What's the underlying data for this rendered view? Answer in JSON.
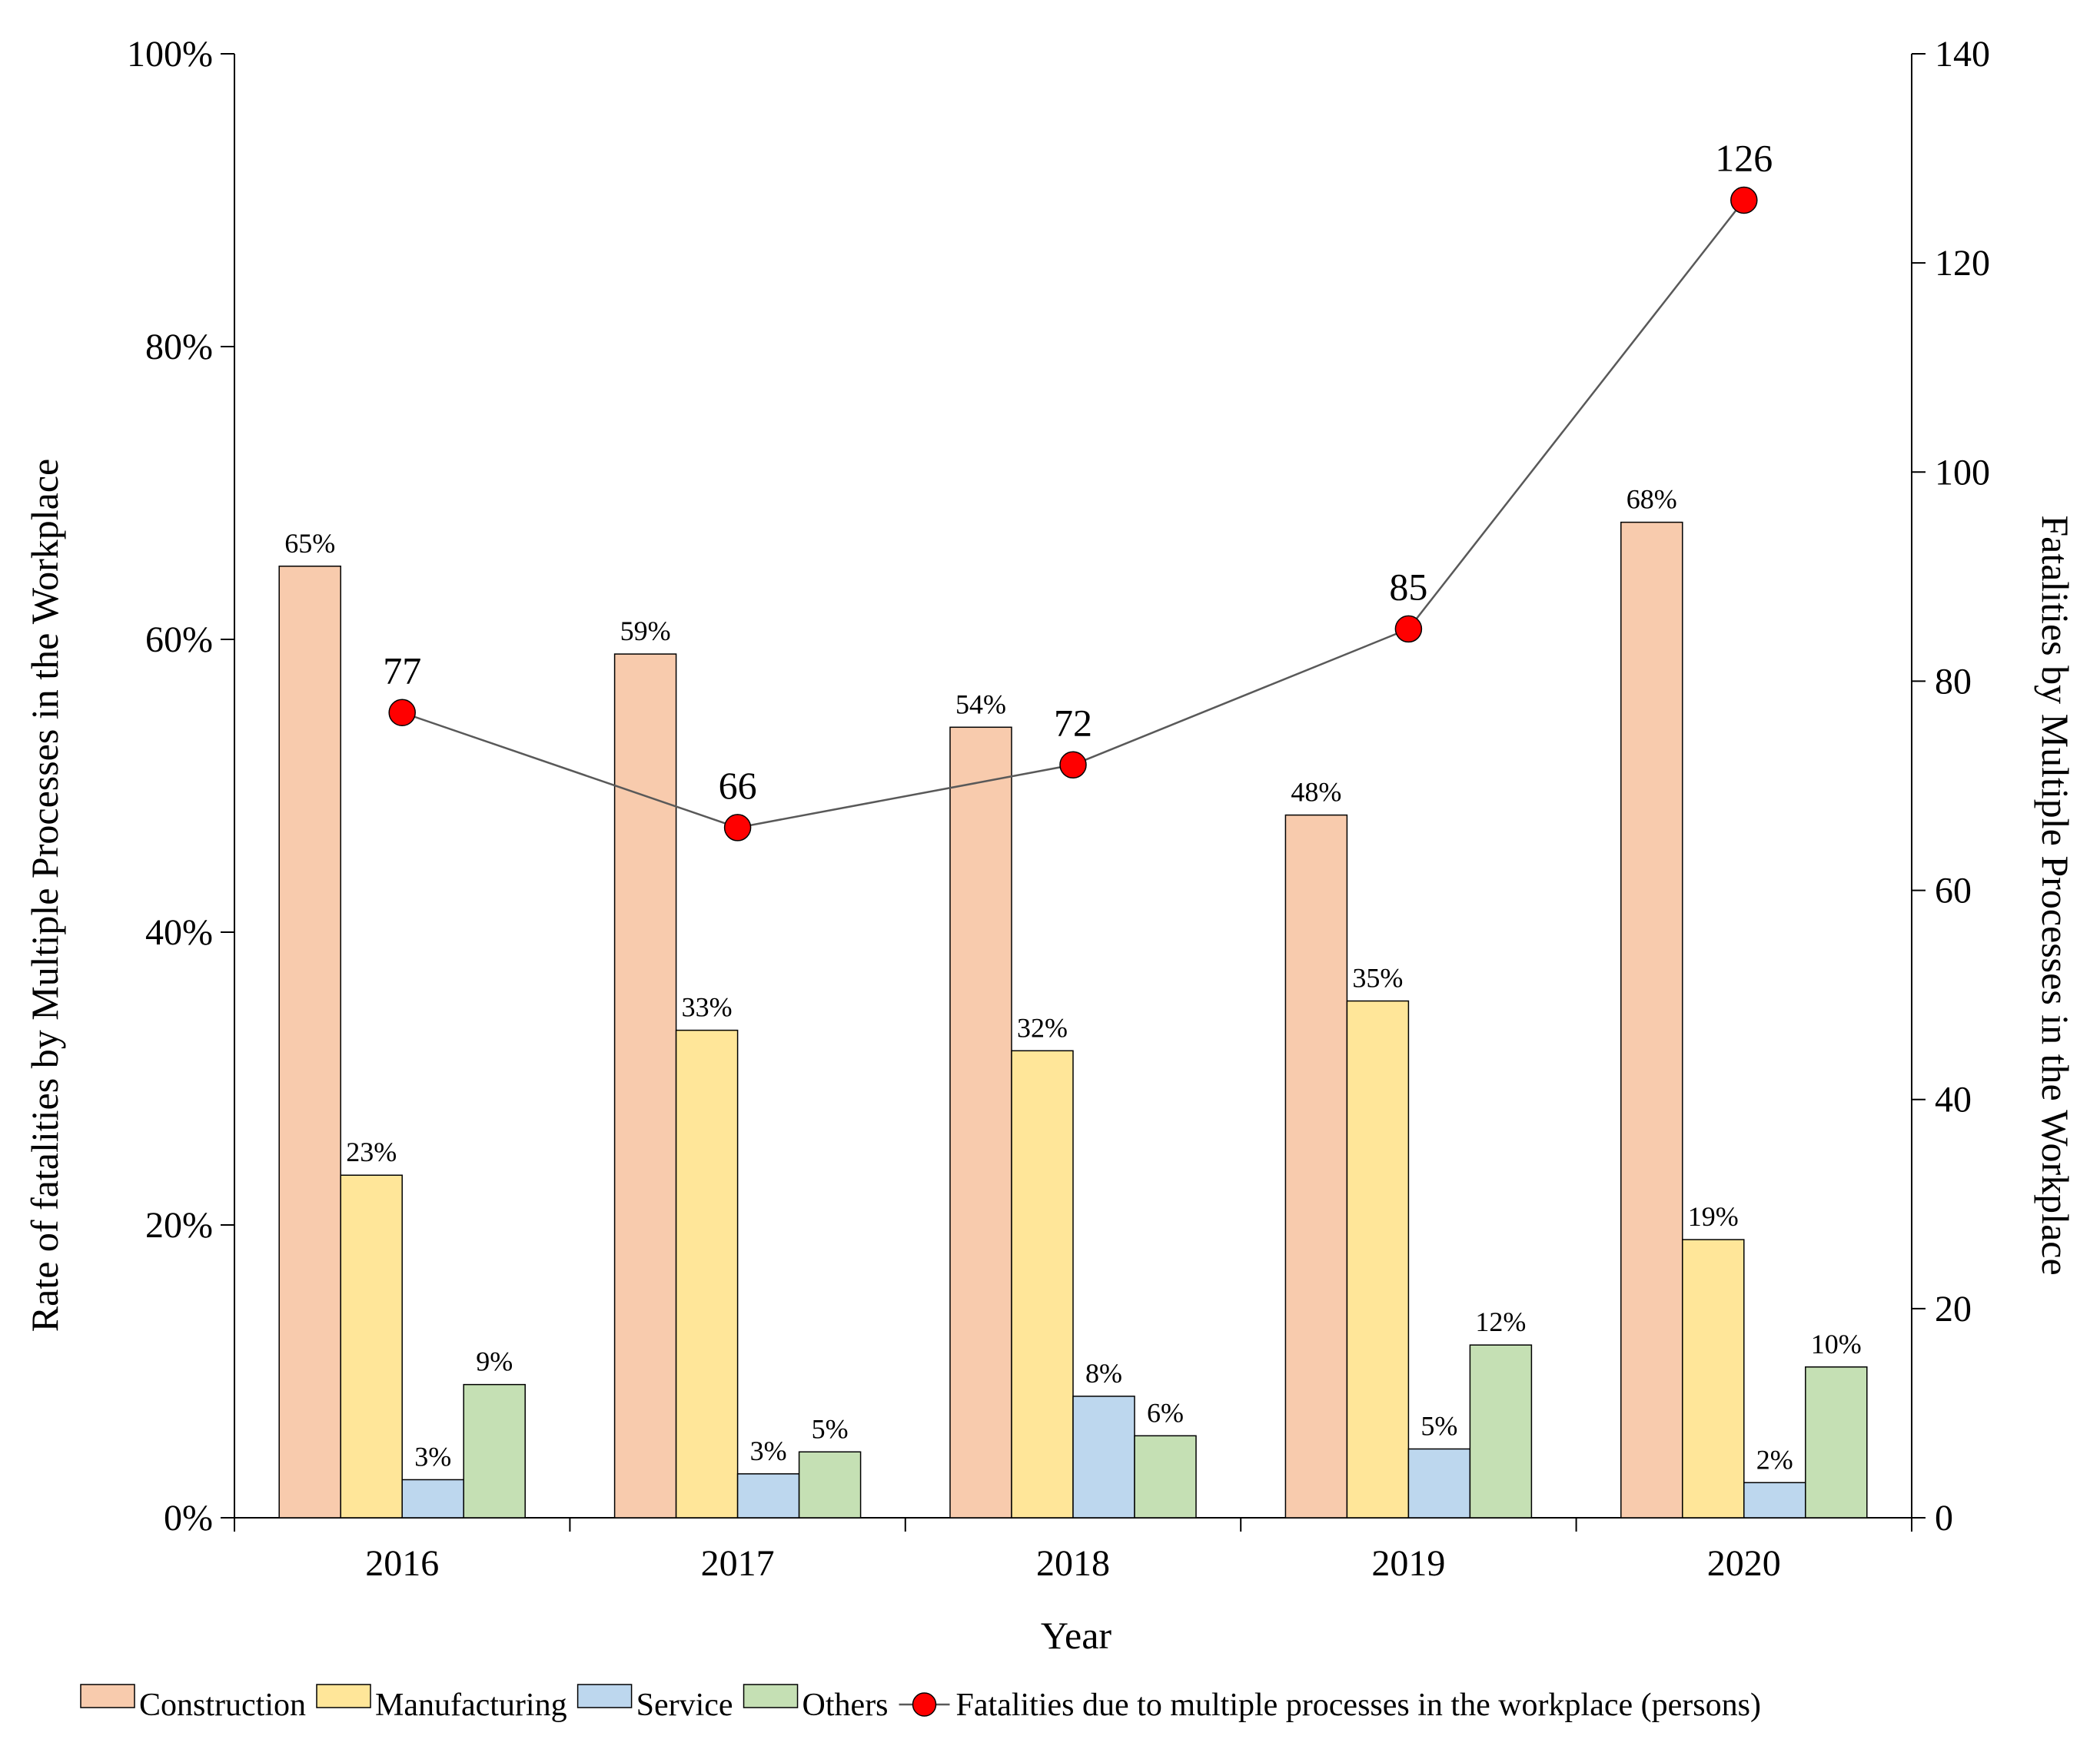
{
  "colors": {
    "construction": "#f8cbad",
    "manufacturing": "#ffe699",
    "service": "#bdd7ee",
    "others": "#c5e0b4",
    "line": "#595959",
    "marker": "#ff0000",
    "axis": "#000000"
  },
  "chart_data": {
    "type": "bar",
    "title": "",
    "xlabel": "Year",
    "ylabel": "Rate of fatalities by Multiple Processes in the Workplace",
    "y2label": "Fatalities by Multiple Processes in the Workplace",
    "categories": [
      "2016",
      "2017",
      "2018",
      "2019",
      "2020"
    ],
    "ylim": [
      0,
      100
    ],
    "y2lim": [
      0,
      140
    ],
    "yticks": [
      "0%",
      "20%",
      "40%",
      "60%",
      "80%",
      "100%"
    ],
    "y2ticks": [
      "0",
      "20",
      "40",
      "60",
      "80",
      "100",
      "120",
      "140"
    ],
    "series": [
      {
        "name": "Construction",
        "values": [
          65,
          59,
          54,
          48,
          68
        ],
        "labels": [
          "65%",
          "59%",
          "54%",
          "48%",
          "68%"
        ]
      },
      {
        "name": "Manufacturing",
        "values": [
          23.4,
          33.3,
          31.9,
          35.3,
          19
        ],
        "labels": [
          "23%",
          "33%",
          "32%",
          "35%",
          "19%"
        ]
      },
      {
        "name": "Service",
        "values": [
          2.6,
          3,
          8.3,
          4.7,
          2.4
        ],
        "labels": [
          "3%",
          "3%",
          "8%",
          "5%",
          "2%"
        ]
      },
      {
        "name": "Others",
        "values": [
          9.1,
          4.5,
          5.6,
          11.8,
          10.3
        ],
        "labels": [
          "9%",
          "5%",
          "6%",
          "12%",
          "10%"
        ]
      }
    ],
    "line_series": {
      "name": "Fatalities due to multiple processes in the workplace (persons)",
      "axis": "right",
      "values": [
        77,
        66,
        72,
        85,
        126
      ],
      "labels": [
        "77",
        "66",
        "72",
        "85",
        "126"
      ]
    },
    "legend": [
      "Construction",
      "Manufacturing",
      "Service",
      "Others",
      "Fatalities due to multiple processes in the workplace (persons)"
    ],
    "legend_position": "bottom",
    "grid": false
  }
}
